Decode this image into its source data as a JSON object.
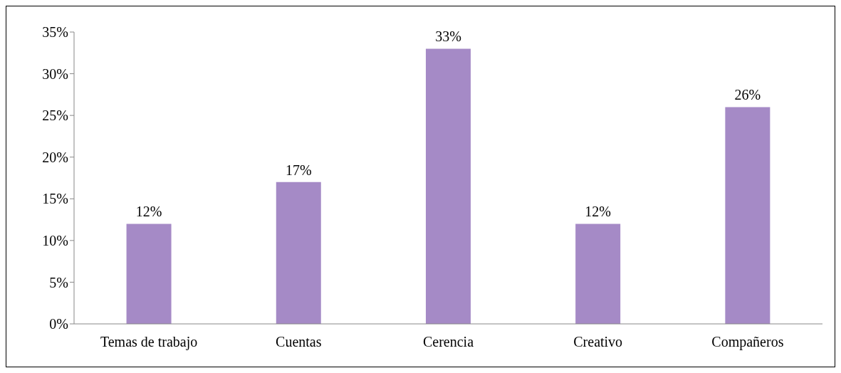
{
  "chart_data": {
    "type": "bar",
    "categories": [
      "Temas de trabajo",
      "Cuentas",
      "Cerencia",
      "Creativo",
      "Compañeros"
    ],
    "values": [
      12,
      17,
      33,
      12,
      26
    ],
    "value_labels": [
      "12%",
      "17%",
      "33%",
      "12%",
      "26%"
    ],
    "color": "#a58ac6",
    "ylim": [
      0,
      35
    ],
    "yticks": [
      {
        "value": 0,
        "label": "0%"
      },
      {
        "value": 5,
        "label": "5%"
      },
      {
        "value": 10,
        "label": "10%"
      },
      {
        "value": 15,
        "label": "15%"
      },
      {
        "value": 20,
        "label": "20%"
      },
      {
        "value": 25,
        "label": "25%"
      },
      {
        "value": 30,
        "label": "30%"
      },
      {
        "value": 35,
        "label": "35%"
      }
    ],
    "grid": false,
    "legend": false
  }
}
